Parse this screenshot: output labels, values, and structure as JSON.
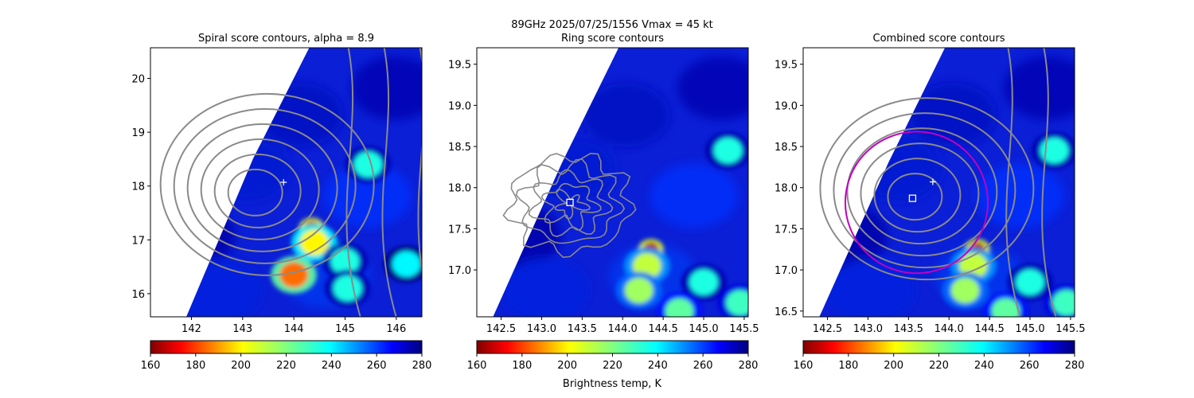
{
  "figure": {
    "suptitle_line1": "89GHz  2025/07/25/1556    Vmax = 45 kt",
    "colorbar_label": "Brightness temp, K"
  },
  "colorbar": {
    "ticks": [
      "160",
      "180",
      "200",
      "220",
      "240",
      "260",
      "280"
    ],
    "range": [
      160,
      280
    ],
    "colormap": "jet_r"
  },
  "chart_data": [
    {
      "type": "heatmap",
      "title": "Spiral score contours, alpha =  8.9",
      "xlim": [
        141.2,
        146.5
      ],
      "ylim": [
        15.57,
        20.57
      ],
      "xticks": [
        "142",
        "143",
        "144",
        "145",
        "146"
      ],
      "yticks": [
        "16",
        "17",
        "18",
        "19",
        "20"
      ],
      "xtick_values": [
        142,
        143,
        144,
        145,
        146
      ],
      "ytick_values": [
        16,
        17,
        18,
        19,
        20
      ],
      "swath_edge": [
        [
          141.2,
          15.57
        ],
        [
          141.9,
          15.57
        ],
        [
          143.2,
          18.5
        ],
        [
          144.3,
          20.57
        ],
        [
          141.2,
          20.57
        ]
      ],
      "contour_center": [
        143.2,
        17.85
      ],
      "center_marker": {
        "shape": "plus",
        "x": 143.8,
        "y": 18.07
      },
      "hot_spots": [
        {
          "x": 144.35,
          "y": 17.22,
          "value": 165
        },
        {
          "x": 144.4,
          "y": 16.95,
          "value": 200
        },
        {
          "x": 144.0,
          "y": 16.35,
          "value": 185
        },
        {
          "x": 145.0,
          "y": 16.6,
          "value": 235
        },
        {
          "x": 145.05,
          "y": 16.1,
          "value": 235
        },
        {
          "x": 145.45,
          "y": 18.4,
          "value": 235
        },
        {
          "x": 146.2,
          "y": 16.55,
          "value": 240
        }
      ]
    },
    {
      "type": "heatmap",
      "title": "Ring score contours",
      "xlim": [
        142.2,
        145.55
      ],
      "ylim": [
        16.43,
        19.7
      ],
      "xticks": [
        "142.5",
        "143.0",
        "143.5",
        "144.0",
        "144.5",
        "145.0",
        "145.5"
      ],
      "yticks": [
        "17.0",
        "17.5",
        "18.0",
        "18.5",
        "19.0",
        "19.5"
      ],
      "xtick_values": [
        142.5,
        143.0,
        143.5,
        144.0,
        144.5,
        145.0,
        145.5
      ],
      "ytick_values": [
        17.0,
        17.5,
        18.0,
        18.5,
        19.0,
        19.5
      ],
      "swath_edge": [
        [
          142.2,
          16.43
        ],
        [
          142.4,
          16.43
        ],
        [
          143.25,
          18.3
        ],
        [
          143.95,
          19.7
        ],
        [
          142.2,
          19.7
        ]
      ],
      "contour_center": [
        143.35,
        17.8
      ],
      "center_marker": {
        "shape": "square",
        "x": 143.35,
        "y": 17.82
      },
      "hot_spots": [
        {
          "x": 144.35,
          "y": 17.25,
          "value": 165
        },
        {
          "x": 144.3,
          "y": 17.05,
          "value": 210
        },
        {
          "x": 144.2,
          "y": 16.75,
          "value": 215
        },
        {
          "x": 145.0,
          "y": 16.85,
          "value": 235
        },
        {
          "x": 145.3,
          "y": 18.45,
          "value": 235
        },
        {
          "x": 145.45,
          "y": 16.6,
          "value": 230
        },
        {
          "x": 144.7,
          "y": 16.5,
          "value": 225
        }
      ]
    },
    {
      "type": "heatmap",
      "title": "Combined score contours",
      "xlim": [
        142.2,
        145.55
      ],
      "ylim": [
        16.43,
        19.7
      ],
      "xticks": [
        "142.5",
        "143.0",
        "143.5",
        "144.0",
        "144.5",
        "145.0",
        "145.5"
      ],
      "yticks": [
        "16.5",
        "17.0",
        "17.5",
        "18.0",
        "18.5",
        "19.0",
        "19.5"
      ],
      "xtick_values": [
        142.5,
        143.0,
        143.5,
        144.0,
        144.5,
        145.0,
        145.5
      ],
      "ytick_values": [
        16.5,
        17.0,
        17.5,
        18.0,
        18.5,
        19.0,
        19.5
      ],
      "swath_edge": [
        [
          142.2,
          16.43
        ],
        [
          142.4,
          16.43
        ],
        [
          143.25,
          18.3
        ],
        [
          143.95,
          19.7
        ],
        [
          142.2,
          19.7
        ]
      ],
      "contour_center": [
        143.55,
        17.87
      ],
      "center_marker": {
        "shape": "square",
        "x": 143.55,
        "y": 17.87
      },
      "plus_marker": {
        "x": 143.8,
        "y": 18.07
      },
      "ring": {
        "x": 143.6,
        "y": 17.82,
        "rx": 0.88,
        "ry": 0.86,
        "color": "#c000c0"
      },
      "hot_spots": [
        {
          "x": 144.35,
          "y": 17.25,
          "value": 165
        },
        {
          "x": 144.3,
          "y": 17.05,
          "value": 210
        },
        {
          "x": 144.2,
          "y": 16.75,
          "value": 215
        },
        {
          "x": 145.0,
          "y": 16.85,
          "value": 235
        },
        {
          "x": 145.3,
          "y": 18.45,
          "value": 235
        },
        {
          "x": 145.45,
          "y": 16.6,
          "value": 230
        },
        {
          "x": 144.7,
          "y": 16.5,
          "value": 225
        }
      ]
    }
  ]
}
